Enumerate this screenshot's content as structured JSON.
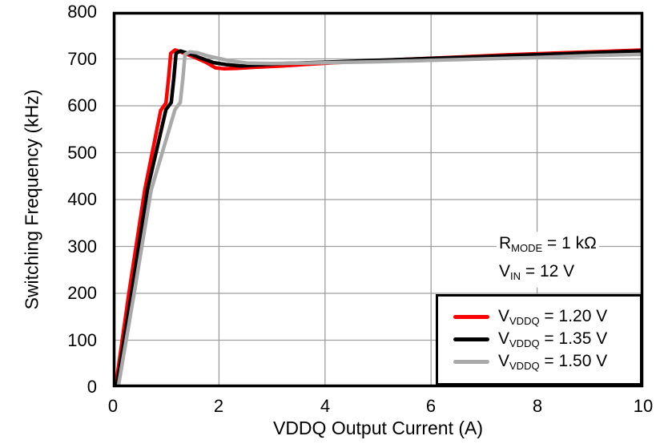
{
  "chart_data": {
    "type": "line",
    "title": "",
    "xlabel": "VDDQ Output Current  (A)",
    "ylabel": "Switching Frequency (kHz)",
    "xlim": [
      0,
      10
    ],
    "ylim": [
      0,
      800
    ],
    "x_ticks": [
      0,
      2,
      4,
      6,
      8,
      10
    ],
    "y_ticks": [
      0,
      100,
      200,
      300,
      400,
      500,
      600,
      700,
      800
    ],
    "grid": true,
    "legend_position": "bottom-right",
    "series": [
      {
        "name": "VVDDQ = 1.20 V",
        "label_pre": "V",
        "label_sub": "VDDQ",
        "label_post": " = 1.20 V",
        "color": "#FF0000",
        "points": [
          [
            0.05,
            0
          ],
          [
            0.3,
            200
          ],
          [
            0.6,
            420
          ],
          [
            0.9,
            590
          ],
          [
            1.0,
            606
          ],
          [
            1.05,
            660
          ],
          [
            1.09,
            712
          ],
          [
            1.17,
            719
          ],
          [
            1.32,
            713
          ],
          [
            1.55,
            703
          ],
          [
            1.75,
            693
          ],
          [
            1.93,
            681
          ],
          [
            2.1,
            679
          ],
          [
            2.35,
            680
          ],
          [
            2.65,
            682
          ],
          [
            3.2,
            685
          ],
          [
            3.6,
            688
          ],
          [
            4.5,
            694
          ],
          [
            5.5,
            699
          ],
          [
            6.5,
            704
          ],
          [
            7.5,
            709
          ],
          [
            8.5,
            713
          ],
          [
            9.3,
            716
          ],
          [
            10,
            719
          ]
        ]
      },
      {
        "name": "VVDDQ = 1.35 V",
        "label_pre": "V",
        "label_sub": "VDDQ",
        "label_post": " = 1.35 V",
        "color": "#000000",
        "points": [
          [
            0.07,
            0
          ],
          [
            0.35,
            200
          ],
          [
            0.65,
            420
          ],
          [
            1.0,
            592
          ],
          [
            1.1,
            607
          ],
          [
            1.15,
            660
          ],
          [
            1.19,
            712
          ],
          [
            1.27,
            717
          ],
          [
            1.45,
            711
          ],
          [
            1.65,
            702
          ],
          [
            1.9,
            692
          ],
          [
            2.13,
            688
          ],
          [
            2.4,
            685
          ],
          [
            2.7,
            687
          ],
          [
            3.2,
            690
          ],
          [
            4.0,
            693
          ],
          [
            5.0,
            697
          ],
          [
            6.0,
            701
          ],
          [
            7.0,
            705
          ],
          [
            8.0,
            709
          ],
          [
            9.0,
            713
          ],
          [
            10,
            717
          ]
        ]
      },
      {
        "name": "VVDDQ = 1.50 V",
        "label_pre": "V",
        "label_sub": "VDDQ",
        "label_post": " = 1.50 V",
        "color": "#A9A9A9",
        "points": [
          [
            0.1,
            0
          ],
          [
            0.4,
            200
          ],
          [
            0.72,
            420
          ],
          [
            1.17,
            592
          ],
          [
            1.27,
            607
          ],
          [
            1.32,
            660
          ],
          [
            1.36,
            710
          ],
          [
            1.45,
            715
          ],
          [
            1.6,
            713
          ],
          [
            1.8,
            706
          ],
          [
            2.0,
            701
          ],
          [
            2.2,
            696
          ],
          [
            2.55,
            691
          ],
          [
            3.0,
            690
          ],
          [
            4.0,
            692
          ],
          [
            5.0,
            694
          ],
          [
            6.0,
            697
          ],
          [
            7.0,
            700
          ],
          [
            8.0,
            703
          ],
          [
            9.0,
            707
          ],
          [
            10,
            710
          ]
        ]
      }
    ],
    "annotations": [
      {
        "pre": "R",
        "sub": "MODE",
        "post": " = 1 kΩ"
      },
      {
        "pre": "V",
        "sub": "IN",
        "post": " = 12 V"
      }
    ]
  },
  "colors": {
    "axis": "#000000",
    "grid": "#9E9E9E",
    "background": "#FFFFFF"
  }
}
